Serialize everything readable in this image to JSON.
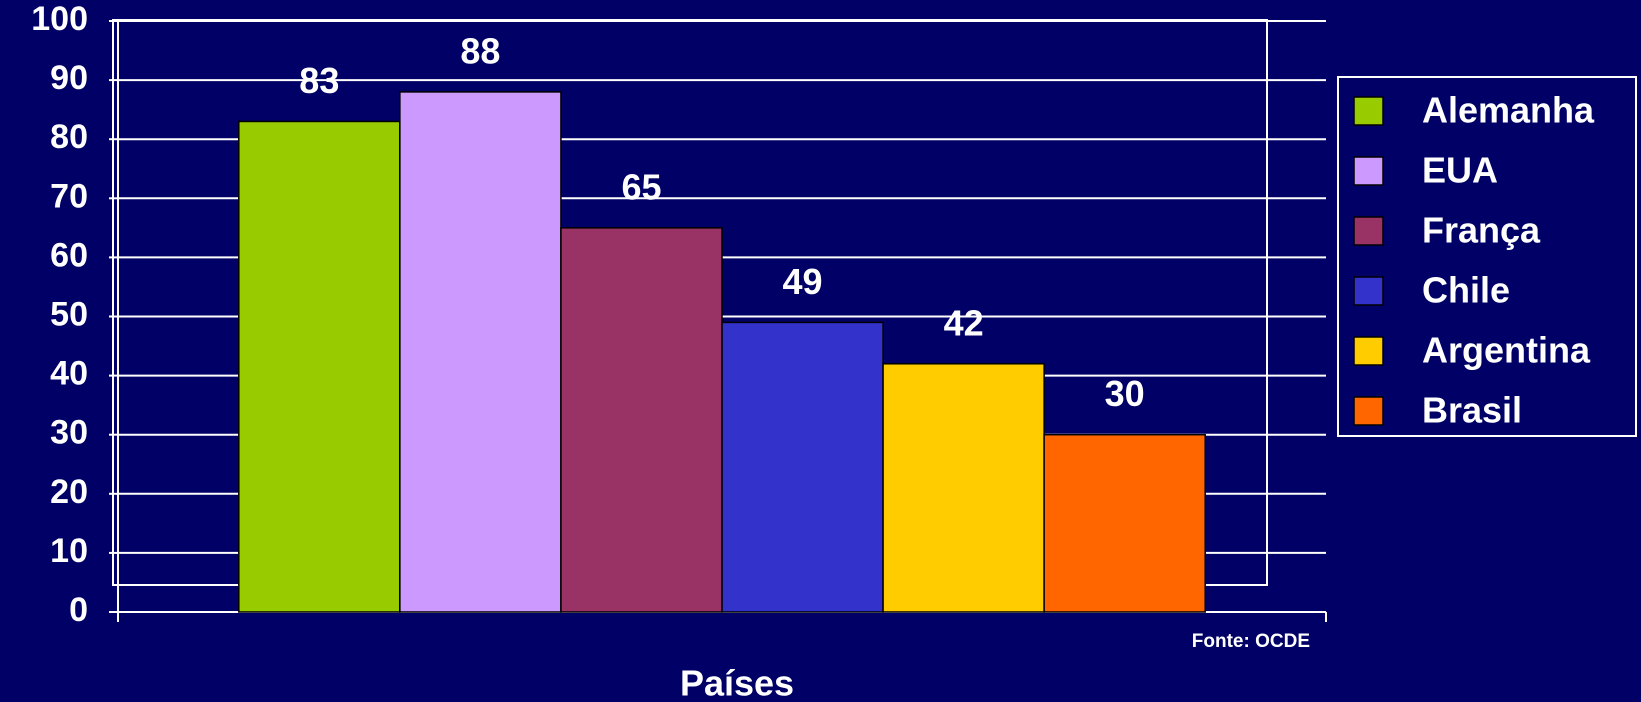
{
  "chart_data": {
    "type": "bar",
    "xlabel": "Países",
    "annotation": "Fonte: OCDE",
    "categories": [
      null
    ],
    "series": [
      {
        "name": "Alemanha",
        "color": "#99cc00",
        "values": [
          83
        ]
      },
      {
        "name": "EUA",
        "color": "#cc99ff",
        "values": [
          88
        ]
      },
      {
        "name": "França",
        "color": "#993366",
        "values": [
          65
        ]
      },
      {
        "name": "Chile",
        "color": "#3333cc",
        "values": [
          49
        ]
      },
      {
        "name": "Argentina",
        "color": "#ffcc00",
        "values": [
          42
        ]
      },
      {
        "name": "Brasil",
        "color": "#ff6600",
        "values": [
          30
        ]
      }
    ],
    "ylim": [
      0,
      100
    ],
    "yticks": [
      0,
      10,
      20,
      30,
      40,
      50,
      60,
      70,
      80,
      90,
      100
    ],
    "grid": true,
    "legend": "right"
  }
}
